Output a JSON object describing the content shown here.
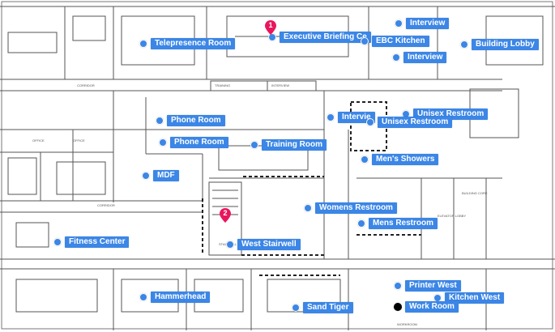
{
  "map": {
    "locations": [
      {
        "id": "telepresence-room",
        "label": "Telepresence Room"
      },
      {
        "id": "executive-briefing",
        "label": "Executive Briefing Ce"
      },
      {
        "id": "interview-1",
        "label": "Interview"
      },
      {
        "id": "ebc-kitchen",
        "label": "EBC Kitchen"
      },
      {
        "id": "interview-2",
        "label": "Interview"
      },
      {
        "id": "building-lobby",
        "label": "Building Lobby"
      },
      {
        "id": "interview-3",
        "label": "Intervie"
      },
      {
        "id": "unisex-restroom-1",
        "label": "Unisex Restroom"
      },
      {
        "id": "unisex-restroom-2",
        "label": "Unisex Restroom"
      },
      {
        "id": "phone-room-1",
        "label": "Phone Room"
      },
      {
        "id": "phone-room-2",
        "label": "Phone Room"
      },
      {
        "id": "training-room",
        "label": "Training Room"
      },
      {
        "id": "mens-showers",
        "label": "Men's Showers"
      },
      {
        "id": "mdf",
        "label": "MDF"
      },
      {
        "id": "womens-restroom",
        "label": "Womens Restroom"
      },
      {
        "id": "mens-restroom",
        "label": "Mens Restroom"
      },
      {
        "id": "fitness-center",
        "label": "Fitness Center"
      },
      {
        "id": "west-stairwell",
        "label": "West Stairwell"
      },
      {
        "id": "printer-west",
        "label": "Printer West"
      },
      {
        "id": "kitchen-west",
        "label": "Kitchen West"
      },
      {
        "id": "hammerhead",
        "label": "Hammerhead"
      },
      {
        "id": "sand-tiger",
        "label": "Sand Tiger"
      },
      {
        "id": "work-room",
        "label": "Work Room"
      }
    ],
    "markers": [
      {
        "id": "marker-1",
        "number": "1"
      },
      {
        "id": "marker-2",
        "number": "2"
      }
    ],
    "colors": {
      "pin": "#3b86e6",
      "marker": "#e8175d",
      "walls": "#555555"
    }
  }
}
